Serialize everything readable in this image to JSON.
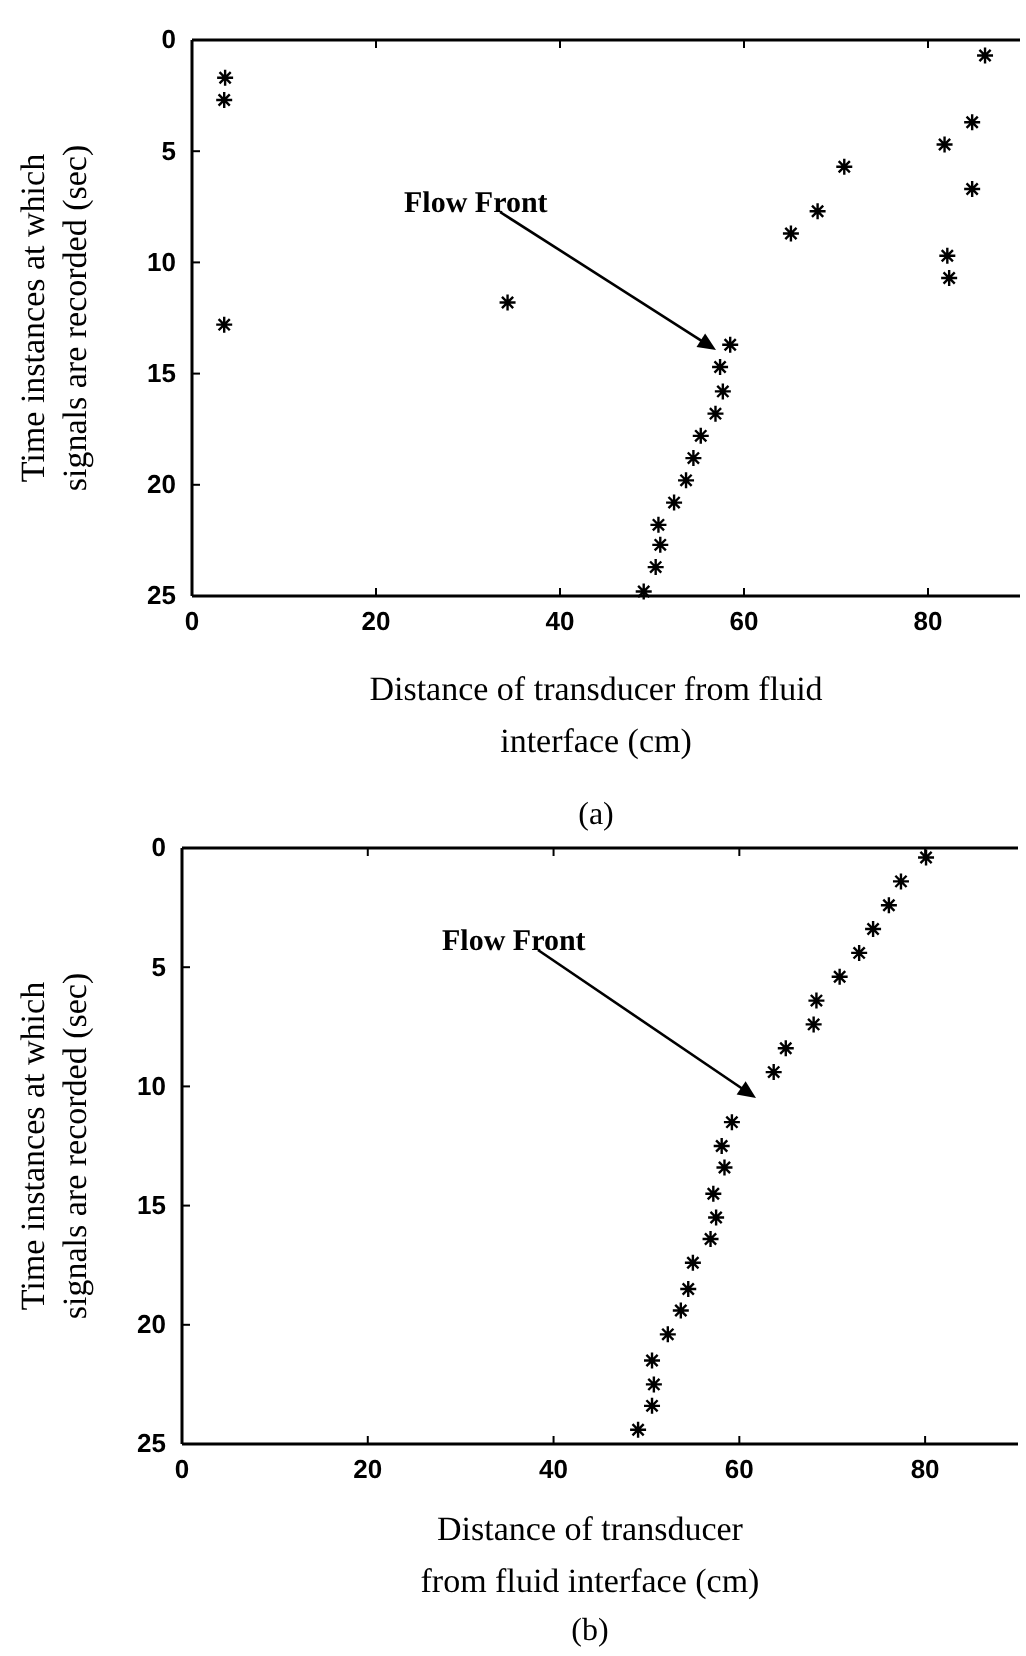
{
  "chart_data": [
    {
      "type": "scatter",
      "xlabel": "Distance of transducer from fluid\ninterface (cm)",
      "ylabel": "Time instances at which\nsignals are recorded (sec)",
      "xlim": [
        0,
        90
      ],
      "ylim": [
        25,
        0
      ],
      "xticks": [
        0,
        20,
        40,
        60,
        80
      ],
      "yticks": [
        0,
        5,
        10,
        15,
        20,
        25
      ],
      "marker": "cross",
      "series": [
        {
          "color": "#000000",
          "x": [
            3.6,
            3.5,
            3.5,
            34.3,
            86.2,
            84.8,
            81.8,
            84.8,
            70.9,
            68.0,
            65.1,
            82.1,
            82.3,
            58.5,
            57.4,
            57.7,
            56.9,
            55.3,
            54.5,
            53.7,
            52.4,
            50.7,
            50.9,
            50.4,
            49.1
          ],
          "values": [
            1.7,
            2.7,
            12.8,
            11.8,
            0.7,
            3.7,
            4.7,
            6.7,
            5.7,
            7.7,
            8.7,
            9.7,
            10.7,
            13.7,
            14.7,
            15.8,
            16.8,
            17.8,
            18.8,
            19.8,
            20.8,
            21.8,
            22.7,
            23.7,
            24.8
          ]
        }
      ],
      "annotations": [
        "Flow Front",
        "(a)"
      ]
    },
    {
      "type": "scatter",
      "xlabel": "Distance of transducer\nfrom fluid interface (cm)",
      "ylabel": "Time instances at which\nsignals are recorded (sec)",
      "xlim": [
        0,
        90
      ],
      "ylim": [
        25,
        0
      ],
      "xticks": [
        0,
        20,
        40,
        60,
        80
      ],
      "yticks": [
        0,
        5,
        10,
        15,
        20,
        25
      ],
      "marker": "cross",
      "series": [
        {
          "color": "#000000",
          "x": [
            80.1,
            77.4,
            76.1,
            74.4,
            72.9,
            70.8,
            68.3,
            68.0,
            65.0,
            63.7,
            59.2,
            58.1,
            58.4,
            57.2,
            57.5,
            56.9,
            55.0,
            54.5,
            53.7,
            52.3,
            50.6,
            50.8,
            50.6,
            49.1
          ],
          "values": [
            0.4,
            1.4,
            2.4,
            3.4,
            4.4,
            5.4,
            6.4,
            7.4,
            8.4,
            9.4,
            11.5,
            12.5,
            13.4,
            14.5,
            15.5,
            16.4,
            17.4,
            18.5,
            19.4,
            20.4,
            21.5,
            22.5,
            23.4,
            24.4
          ]
        }
      ],
      "annotations": [
        "Flow Front",
        "(b)"
      ]
    }
  ]
}
